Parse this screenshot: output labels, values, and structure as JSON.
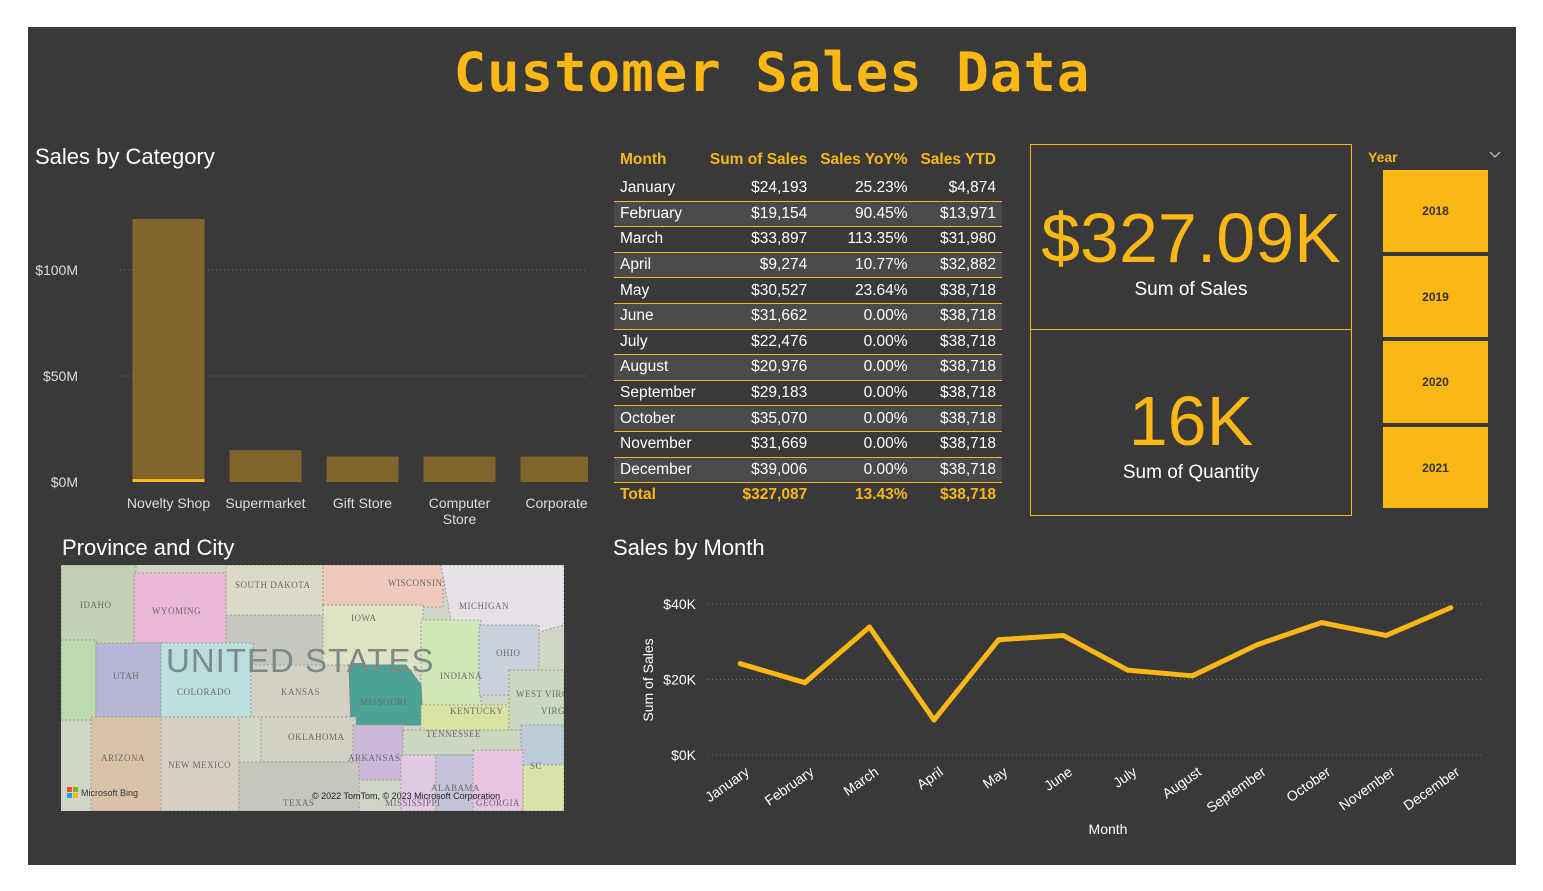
{
  "title": "Customer Sales Data",
  "colors": {
    "accent": "#fbb714",
    "bar": "#81652a",
    "background": "#393939"
  },
  "category_chart": {
    "title": "Sales by Category",
    "chart_data": {
      "type": "bar",
      "title": "Sales by Category",
      "categories": [
        "Novelty Shop",
        "Supermarket",
        "Gift Store",
        "Computer Store",
        "Corporate"
      ],
      "category_lines": [
        [
          "Novelty Shop"
        ],
        [
          "Supermarket"
        ],
        [
          "Gift Store"
        ],
        [
          "Computer",
          "Store"
        ],
        [
          "Corporate"
        ]
      ],
      "values": [
        124,
        15,
        12,
        12,
        12
      ],
      "unit": "$M",
      "ylim": [
        0,
        124
      ],
      "yticks": [
        0,
        50,
        100
      ],
      "ytick_labels": [
        "$0M",
        "$50M",
        "$100M"
      ]
    }
  },
  "table": {
    "headers": [
      "Month",
      "Sum of Sales",
      "Sales YoY%",
      "Sales YTD"
    ],
    "rows": [
      [
        "January",
        "$24,193",
        "25.23%",
        "$4,874"
      ],
      [
        "February",
        "$19,154",
        "90.45%",
        "$13,971"
      ],
      [
        "March",
        "$33,897",
        "113.35%",
        "$31,980"
      ],
      [
        "April",
        "$9,274",
        "10.77%",
        "$32,882"
      ],
      [
        "May",
        "$30,527",
        "23.64%",
        "$38,718"
      ],
      [
        "June",
        "$31,662",
        "0.00%",
        "$38,718"
      ],
      [
        "July",
        "$22,476",
        "0.00%",
        "$38,718"
      ],
      [
        "August",
        "$20,976",
        "0.00%",
        "$38,718"
      ],
      [
        "September",
        "$29,183",
        "0.00%",
        "$38,718"
      ],
      [
        "October",
        "$35,070",
        "0.00%",
        "$38,718"
      ],
      [
        "November",
        "$31,669",
        "0.00%",
        "$38,718"
      ],
      [
        "December",
        "$39,006",
        "0.00%",
        "$38,718"
      ]
    ],
    "total": [
      "Total",
      "$327,087",
      "13.43%",
      "$38,718"
    ]
  },
  "cards": {
    "sales": {
      "value": "$327.09K",
      "label": "Sum of Sales"
    },
    "quantity": {
      "value": "16K",
      "label": "Sum of Quantity"
    }
  },
  "slicer": {
    "title": "Year",
    "options": [
      "2018",
      "2019",
      "2020",
      "2021"
    ]
  },
  "map": {
    "title": "Province and City",
    "country_label": "UNITED STATES",
    "states": [
      "SOUTH DAKOTA",
      "WISCONSIN",
      "IDAHO",
      "WYOMING",
      "MICHIGAN",
      "IOWA",
      "OHIO",
      "UTAH",
      "COLORADO",
      "KANSAS",
      "MISSOURI",
      "INDIANA",
      "WEST VIRGINIA",
      "KENTUCKY",
      "VIRG",
      "TENNESSEE",
      "OKLAHOMA",
      "ARIZONA",
      "NEW MEXICO",
      "ARKANSAS",
      "SC",
      "ALABAMA",
      "TEXAS",
      "MISSISSIPPI",
      "GEORGIA"
    ],
    "attribution": "© 2022 TomTom, © 2023 Microsoft Corporation",
    "brand": "Microsoft Bing"
  },
  "month_chart": {
    "title": "Sales by Month",
    "chart_data": {
      "type": "line",
      "title": "Sales by Month",
      "xlabel": "Month",
      "ylabel": "Sum of Sales",
      "categories": [
        "January",
        "February",
        "March",
        "April",
        "May",
        "June",
        "July",
        "August",
        "September",
        "October",
        "November",
        "December"
      ],
      "values": [
        24193,
        19154,
        33897,
        9274,
        30527,
        31662,
        22476,
        20976,
        29183,
        35070,
        31669,
        39006
      ],
      "ylim": [
        0,
        40000
      ],
      "yticks": [
        0,
        20000,
        40000
      ],
      "ytick_labels": [
        "$0K",
        "$20K",
        "$40K"
      ]
    }
  }
}
